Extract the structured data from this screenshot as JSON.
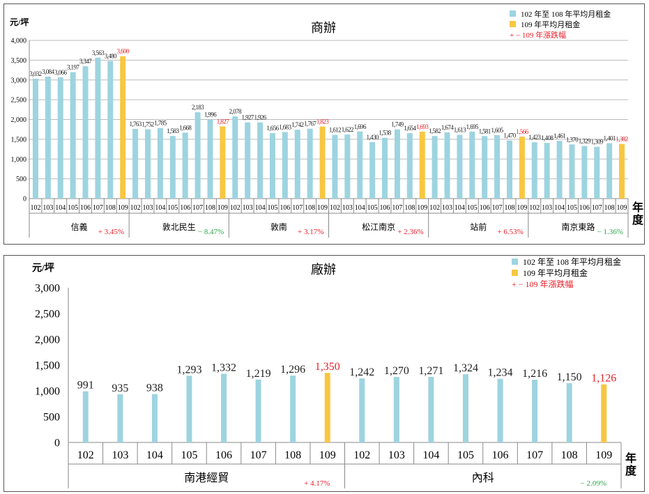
{
  "chart_data": [
    {
      "type": "bar",
      "title": "商辦",
      "ylabel": "元/坪",
      "xlabel": "年度",
      "ylim": [
        0,
        4000
      ],
      "yticks": [
        0,
        500,
        1000,
        1500,
        2000,
        2500,
        3000,
        3500,
        4000
      ],
      "legend": {
        "placement": "top-right",
        "items": [
          "102 年至 108 年平均月租金",
          "109 年平均月租金",
          "+ − 109 年漲跌幅"
        ]
      },
      "colors": {
        "base": "#9dd4e0",
        "current": "#f8c741",
        "up": "#e8202a",
        "down": "#2aa84a"
      },
      "years": [
        "102",
        "103",
        "104",
        "105",
        "106",
        "107",
        "108",
        "109"
      ],
      "groups": [
        {
          "name": "信義",
          "change": "+ 3.45%",
          "dir": "up",
          "values": [
            3032,
            3084,
            3066,
            3197,
            3347,
            3563,
            3480,
            3600
          ]
        },
        {
          "name": "敦北民生",
          "change": "− 8.47%",
          "dir": "down",
          "values": [
            1763,
            1752,
            1785,
            1583,
            1668,
            2183,
            1996,
            1827
          ]
        },
        {
          "name": "敦南",
          "change": "+ 3.17%",
          "dir": "up",
          "values": [
            2078,
            1927,
            1926,
            1656,
            1683,
            1742,
            1767,
            1823
          ]
        },
        {
          "name": "松江南京",
          "change": "+ 2.36%",
          "dir": "up",
          "values": [
            1612,
            1622,
            1696,
            1430,
            1538,
            1749,
            1654,
            1693
          ]
        },
        {
          "name": "站前",
          "change": "+ 6.53%",
          "dir": "up",
          "values": [
            1582,
            1674,
            1613,
            1695,
            1581,
            1605,
            1470,
            1566
          ]
        },
        {
          "name": "南京東路",
          "change": "− 1.36%",
          "dir": "down",
          "values": [
            1423,
            1408,
            1461,
            1370,
            1329,
            1309,
            1401,
            1382
          ]
        }
      ]
    },
    {
      "type": "bar",
      "title": "廠辦",
      "ylabel": "元/坪",
      "xlabel": "年度",
      "ylim": [
        0,
        3000
      ],
      "yticks": [
        0,
        500,
        1000,
        1500,
        2000,
        2500,
        3000
      ],
      "legend": {
        "placement": "top-right",
        "items": [
          "102 年至 108 年平均月租金",
          "109 年平均月租金",
          "+ − 109 年漲跌幅"
        ]
      },
      "colors": {
        "base": "#9dd4e0",
        "current": "#f8c741",
        "up": "#e8202a",
        "down": "#2aa84a"
      },
      "years": [
        "102",
        "103",
        "104",
        "105",
        "106",
        "107",
        "108",
        "109"
      ],
      "groups": [
        {
          "name": "南港經貿",
          "change": "+ 4.17%",
          "dir": "up",
          "values": [
            991,
            935,
            938,
            1293,
            1332,
            1219,
            1296,
            1350
          ]
        },
        {
          "name": "內科",
          "change": "− 2.09%",
          "dir": "down",
          "values": [
            1242,
            1270,
            1271,
            1324,
            1234,
            1216,
            1150,
            1126
          ]
        }
      ]
    }
  ]
}
